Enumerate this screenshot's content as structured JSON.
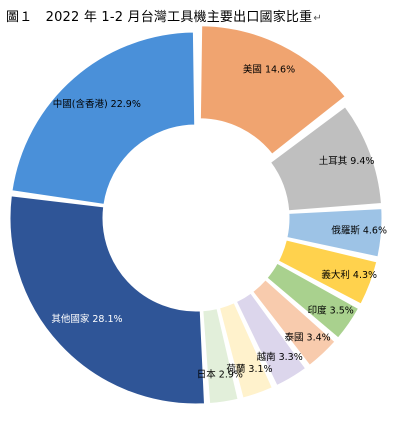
{
  "title": {
    "text": "圖１　2022 年 1-2 月台灣工具機主要出口國家比重",
    "return_mark": "↵"
  },
  "chart_data": {
    "type": "pie",
    "variant": "donut",
    "title": "圖１　2022 年 1-2 月台灣工具機主要出口國家比重",
    "series": [
      {
        "name": "",
        "slices": [
          {
            "label": "美國",
            "value": 14.6,
            "display": "美國 14.6%",
            "color": "#f0a470",
            "label_color": "#000000"
          },
          {
            "label": "土耳其",
            "value": 9.4,
            "display": "土耳其 9.4%",
            "color": "#bfbfbf",
            "label_color": "#000000"
          },
          {
            "label": "俄羅斯",
            "value": 4.6,
            "display": "俄羅斯 4.6%",
            "color": "#9dc3e6",
            "label_color": "#000000"
          },
          {
            "label": "義大利",
            "value": 4.3,
            "display": "義大利 4.3%",
            "color": "#ffd24d",
            "label_color": "#000000"
          },
          {
            "label": "印度",
            "value": 3.5,
            "display": "印度 3.5%",
            "color": "#a9d18e",
            "label_color": "#000000"
          },
          {
            "label": "泰國",
            "value": 3.4,
            "display": "泰國 3.4%",
            "color": "#f8cbad",
            "label_color": "#000000"
          },
          {
            "label": "越南",
            "value": 3.3,
            "display": "越南 3.3%",
            "color": "#dcd6ec",
            "label_color": "#000000"
          },
          {
            "label": "荷蘭",
            "value": 3.1,
            "display": "荷蘭 3.1%",
            "color": "#fff2cc",
            "label_color": "#000000"
          },
          {
            "label": "日本",
            "value": 2.9,
            "display": "日本 2.9%",
            "color": "#e2efda",
            "label_color": "#000000"
          },
          {
            "label": "其他國家",
            "value": 28.1,
            "display": "其他國家 28.1%",
            "color": "#2f5597",
            "label_color": "#ffffff"
          },
          {
            "label": "中國(含香港)",
            "value": 22.9,
            "display": "中國(含香港) 22.9%",
            "color": "#4a90d9",
            "label_color": "#000000"
          }
        ]
      }
    ],
    "unit": "%",
    "legend": "none",
    "start": "top, clockwise"
  }
}
